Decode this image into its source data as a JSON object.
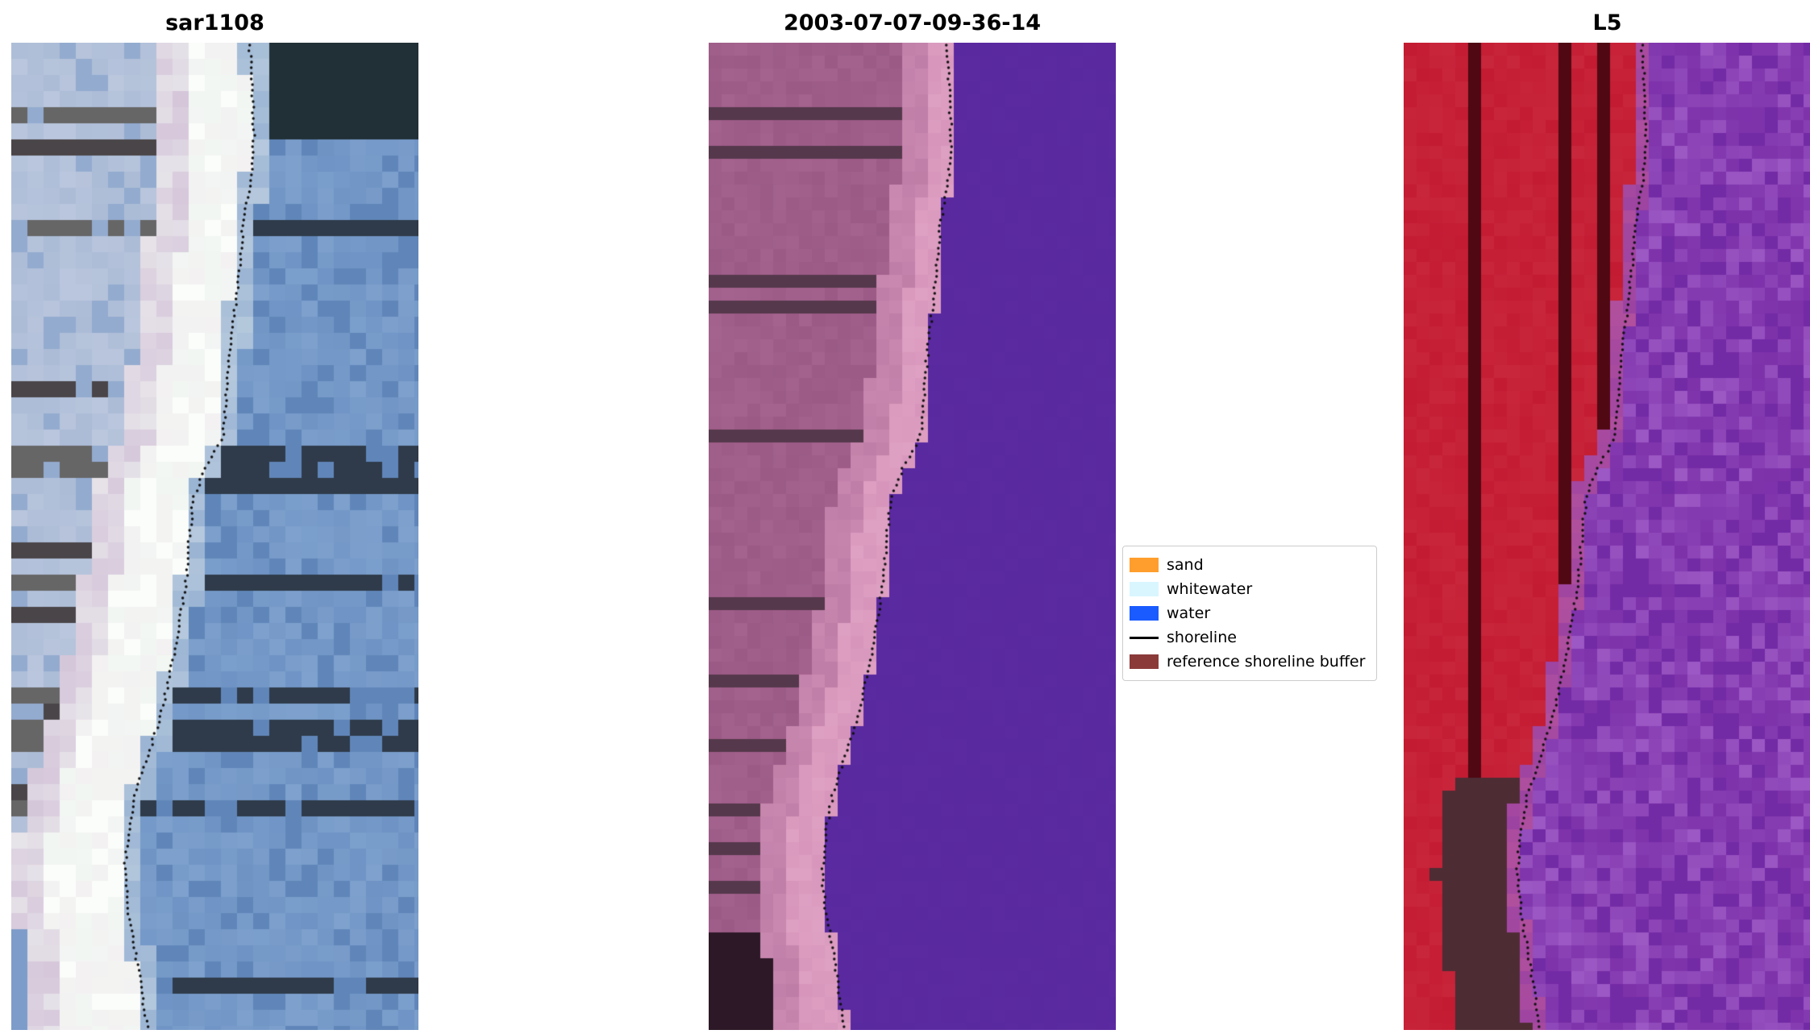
{
  "figure": {
    "background": "#ffffff",
    "panels": [
      {
        "title": "sar1108",
        "kind": "sar",
        "cell": 20,
        "seed": 11,
        "colors": {
          "water": "#6b90c2",
          "waterLight": "#86a8d2",
          "waterDark": "#597fb3",
          "teal": "#6fa0b5",
          "band": "#f2f7f3",
          "bandPink": "#f5e7f0",
          "bandBright": "#fbfdfb",
          "pinkZone": "#d5c6da",
          "farLeft": "#a9bad5",
          "farLight": "#c6cfe3",
          "cornerBlue": "#7d9cc9"
        }
      },
      {
        "title": "2003-07-07-09-36-14",
        "kind": "rgb",
        "cell": 16,
        "seed": 22,
        "colors": {
          "water": "#5b2aa1",
          "waterDark": "#52249a",
          "pink": "#d795bb",
          "pinkLight": "#e3a9c9",
          "landLight": "#bd7da6",
          "land": "#a4628e",
          "landDark": "#91517d"
        }
      },
      {
        "title": "L5",
        "kind": "l5",
        "cell": 16,
        "seed": 33,
        "colors": {
          "water": "#7c30a9",
          "waterLight": "#a05dc7",
          "waterDark": "#6a23a0",
          "boundary": "#b1509d",
          "land": "#c31b32",
          "landLight": "#d23a4c",
          "landDark": "#a01025",
          "pinkish": "#e07d94"
        }
      }
    ],
    "legend": {
      "items": [
        {
          "label": "sand",
          "color": "#ff9e2c",
          "type": "patch"
        },
        {
          "label": "whitewater",
          "color": "#d9f6ff",
          "type": "patch"
        },
        {
          "label": "water",
          "color": "#1a5bff",
          "type": "patch"
        },
        {
          "label": "shoreline",
          "color": "#000000",
          "type": "line"
        },
        {
          "label": "reference shoreline buffer",
          "color": "#8b3a3a",
          "type": "patch"
        }
      ]
    }
  },
  "chart_data": {
    "type": "heatmap",
    "title": "",
    "panel_titles": [
      "sar1108",
      "2003-07-07-09-36-14",
      "L5"
    ],
    "legend_entries": [
      "sand",
      "whitewater",
      "water",
      "shoreline",
      "reference shoreline buffer"
    ],
    "shoreline_marker": "black dotted line, same detected shoreline overlaid on all three panels",
    "shoreline_points_yx_normalized": [
      [
        0.0,
        0.585
      ],
      [
        0.05,
        0.592
      ],
      [
        0.1,
        0.596
      ],
      [
        0.14,
        0.588
      ],
      [
        0.18,
        0.57
      ],
      [
        0.24,
        0.558
      ],
      [
        0.3,
        0.54
      ],
      [
        0.36,
        0.528
      ],
      [
        0.4,
        0.52
      ],
      [
        0.43,
        0.478
      ],
      [
        0.46,
        0.448
      ],
      [
        0.5,
        0.438
      ],
      [
        0.55,
        0.428
      ],
      [
        0.6,
        0.408
      ],
      [
        0.64,
        0.39
      ],
      [
        0.68,
        0.368
      ],
      [
        0.72,
        0.338
      ],
      [
        0.76,
        0.305
      ],
      [
        0.8,
        0.288
      ],
      [
        0.84,
        0.278
      ],
      [
        0.88,
        0.288
      ],
      [
        0.92,
        0.305
      ],
      [
        0.96,
        0.32
      ],
      [
        1.0,
        0.335
      ]
    ]
  }
}
